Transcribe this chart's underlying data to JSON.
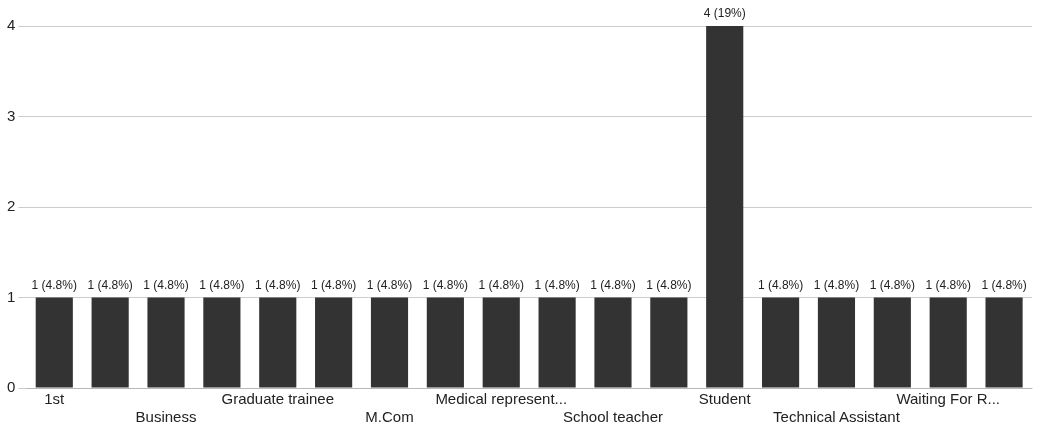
{
  "chart_data": {
    "type": "bar",
    "categories": [
      "1st",
      null,
      "Business",
      null,
      "Graduate trainee",
      null,
      "M.Com",
      null,
      "Medical represent...",
      null,
      "School teacher",
      null,
      "Student",
      null,
      "Technical Assistant",
      null,
      "Waiting For R...",
      null
    ],
    "values": [
      1,
      1,
      1,
      1,
      1,
      1,
      1,
      1,
      1,
      1,
      1,
      1,
      4,
      1,
      1,
      1,
      1,
      1
    ],
    "value_labels": [
      "1 (4.8%)",
      "1 (4.8%)",
      "1 (4.8%)",
      "1 (4.8%)",
      "1 (4.8%)",
      "1 (4.8%)",
      "1 (4.8%)",
      "1 (4.8%)",
      "1 (4.8%)",
      "1 (4.8%)",
      "1 (4.8%)",
      "1 (4.8%)",
      "4 (19%)",
      "1 (4.8%)",
      "1 (4.8%)",
      "1 (4.8%)",
      "1 (4.8%)",
      "1 (4.8%)"
    ],
    "color": "#333333",
    "ylim": [
      0,
      4
    ],
    "yticks": [
      0,
      1,
      2,
      3,
      4
    ],
    "grid": "y"
  }
}
